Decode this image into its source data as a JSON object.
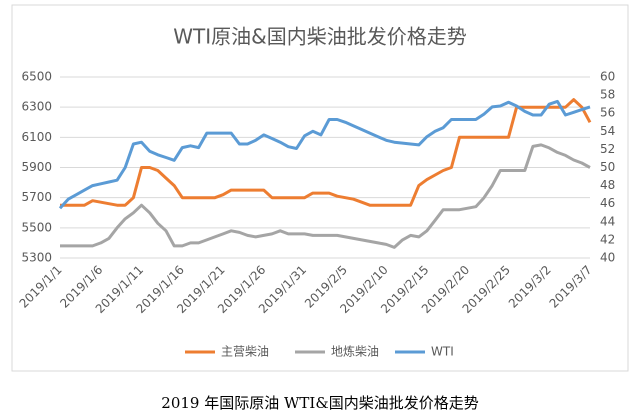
{
  "chart_data": {
    "type": "line",
    "title": "WTI原油&国内柴油批发价格走势",
    "caption": "2019 年国际原油 WTI&国内柴油批发价格走势",
    "categories": [
      "2019/1/1",
      null,
      null,
      null,
      null,
      "2019/1/6",
      null,
      null,
      null,
      null,
      "2019/1/11",
      null,
      null,
      null,
      null,
      "2019/1/16",
      null,
      null,
      null,
      null,
      "2019/1/21",
      null,
      null,
      null,
      null,
      "2019/1/26",
      null,
      null,
      null,
      null,
      "2019/1/31",
      null,
      null,
      null,
      null,
      "2019/2/5",
      null,
      null,
      null,
      null,
      "2019/2/10",
      null,
      null,
      null,
      null,
      "2019/2/15",
      null,
      null,
      null,
      null,
      "2019/2/20",
      null,
      null,
      null,
      null,
      "2019/2/25",
      null,
      null,
      null,
      null,
      "2019/3/2",
      null,
      null,
      null,
      null,
      "2019/3/7"
    ],
    "ylim": [
      5300,
      6500
    ],
    "yticks": [
      5300,
      5500,
      5700,
      5900,
      6100,
      6300,
      6500
    ],
    "y2lim": [
      40,
      60
    ],
    "y2ticks": [
      40,
      42,
      44,
      46,
      48,
      50,
      52,
      54,
      56,
      58,
      60
    ],
    "grid": true,
    "legend": "bottom",
    "series": [
      {
        "name": "主营柴油",
        "color": "#ed7d31",
        "values": [
          5650,
          5650,
          5650,
          5650,
          5680,
          5670,
          5660,
          5650,
          5650,
          5700,
          5900,
          5900,
          5880,
          5830,
          5780,
          5700,
          5700,
          5700,
          5700,
          5700,
          5720,
          5750,
          5750,
          5750,
          5750,
          5750,
          5700,
          5700,
          5700,
          5700,
          5700,
          5730,
          5730,
          5730,
          5710,
          5700,
          5690,
          5670,
          5650,
          5650,
          5650,
          5650,
          5650,
          5650,
          5780,
          5820,
          5850,
          5880,
          5900,
          6100,
          6100,
          6100,
          6100,
          6100,
          6100,
          6100,
          6300,
          6300,
          6300,
          6300,
          6300,
          6300,
          6300,
          6350,
          6300,
          6200
        ]
      },
      {
        "name": "地炼柴油",
        "color": "#a5a5a5",
        "values": [
          5380,
          5380,
          5380,
          5380,
          5380,
          5400,
          5430,
          5500,
          5560,
          5600,
          5650,
          5600,
          5530,
          5480,
          5380,
          5380,
          5400,
          5400,
          5420,
          5440,
          5460,
          5480,
          5470,
          5450,
          5440,
          5450,
          5460,
          5480,
          5460,
          5460,
          5460,
          5450,
          5450,
          5450,
          5450,
          5440,
          5430,
          5420,
          5410,
          5400,
          5390,
          5370,
          5420,
          5450,
          5440,
          5480,
          5550,
          5620,
          5620,
          5620,
          5630,
          5640,
          5700,
          5780,
          5880,
          5880,
          5880,
          5880,
          6040,
          6050,
          6030,
          6000,
          5980,
          5950,
          5930,
          5900
        ]
      },
      {
        "name": "WTI",
        "color": "#5b9bd5",
        "axis": "y2",
        "values": [
          45.5,
          46.5,
          47,
          47.5,
          48,
          48.2,
          48.4,
          48.6,
          50,
          52.6,
          52.8,
          51.8,
          51.4,
          51.1,
          50.8,
          52.2,
          52.4,
          52.2,
          53.8,
          53.8,
          53.8,
          53.8,
          52.6,
          52.6,
          53,
          53.6,
          53.2,
          52.8,
          52.3,
          52.1,
          53.5,
          54,
          53.6,
          55.3,
          55.3,
          55,
          54.6,
          54.2,
          53.8,
          53.4,
          53,
          52.8,
          52.7,
          52.6,
          52.5,
          53.4,
          54,
          54.4,
          55.3,
          55.3,
          55.3,
          55.3,
          55.9,
          56.7,
          56.8,
          57.2,
          56.8,
          56.2,
          55.8,
          55.8,
          57,
          57.3,
          55.8,
          56.1,
          56.4,
          56.7
        ]
      }
    ]
  }
}
